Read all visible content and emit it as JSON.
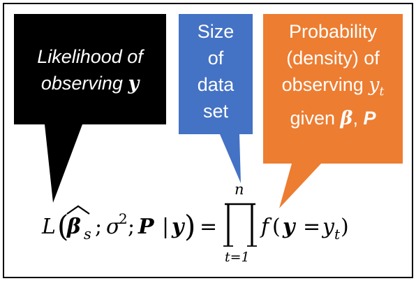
{
  "colors": {
    "likelihood_box": "#000000",
    "size_box": "#4472c4",
    "probability_box": "#ed7d31",
    "text_light": "#ffffff",
    "equation": "#000000"
  },
  "callouts": {
    "likelihood": {
      "line1": "Likelihood of",
      "line2_prefix": "observing ",
      "line2_symbol": "y"
    },
    "size": {
      "lines": [
        "Size",
        "of",
        "data",
        "set"
      ]
    },
    "probability": {
      "line1": "Probability",
      "line2": "(density) of",
      "line3_prefix": "observing ",
      "line3_symbol": "y",
      "line3_sub": "t",
      "line4_prefix": "given ",
      "line4_beta": "β",
      "line4_sep": ", ",
      "line4_P": "P"
    }
  },
  "equation": {
    "L": "L",
    "lparen": "(",
    "beta": "β",
    "beta_sub": "s",
    "semi1": ";",
    "sigma": "σ",
    "sigma_sup": "2",
    "semi2": ";",
    "P": "P",
    "bar": "|",
    "y": "y",
    "rparen": ")",
    "equals": "=",
    "prod_upper": "n",
    "prod_lower": "t=1",
    "f": "f",
    "f_lparen": "(",
    "f_y": "y",
    "f_equals": "=",
    "f_yt": "y",
    "f_yt_sub": "t",
    "f_rparen": ")"
  }
}
